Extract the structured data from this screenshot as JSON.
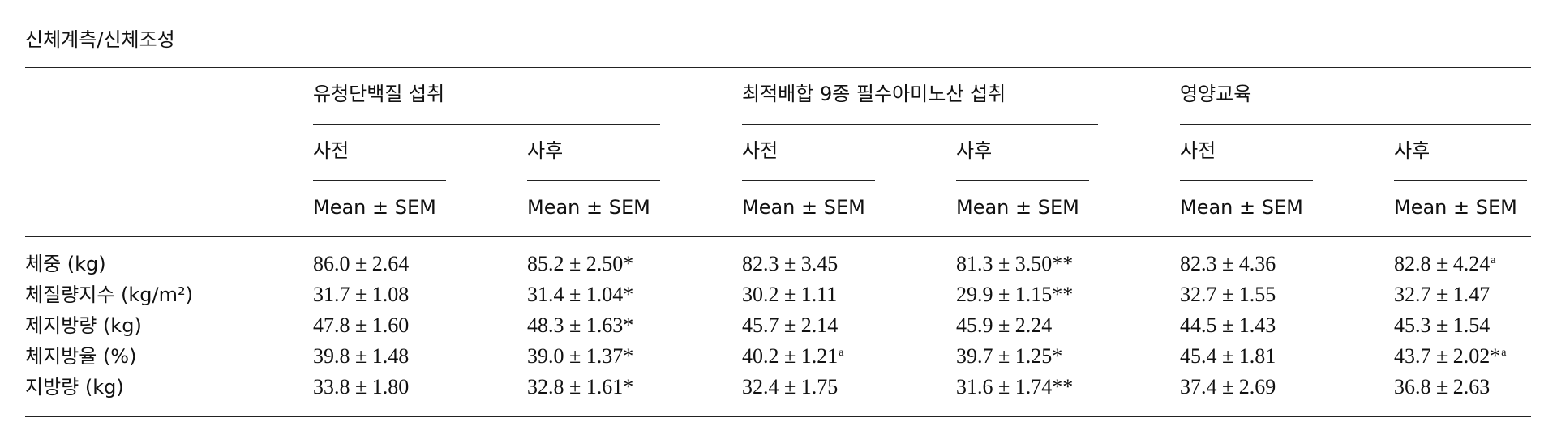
{
  "title": "신체계측/신체조성",
  "table": {
    "groups": [
      {
        "name": "유청단백질 섭취",
        "columns": [
          {
            "name": "사전",
            "stat": "Mean ± SEM"
          },
          {
            "name": "사후",
            "stat": "Mean ± SEM"
          }
        ]
      },
      {
        "name": "최적배합 9종 필수아미노산 섭취",
        "columns": [
          {
            "name": "사전",
            "stat": "Mean ± SEM"
          },
          {
            "name": "사후",
            "stat": "Mean ± SEM"
          }
        ]
      },
      {
        "name": "영양교육",
        "columns": [
          {
            "name": "사전",
            "stat": "Mean ± SEM"
          },
          {
            "name": "사후",
            "stat": "Mean ± SEM"
          }
        ]
      }
    ],
    "rows": [
      {
        "label": "체중 (kg)",
        "cells": [
          {
            "text": "86.0 ± 2.64"
          },
          {
            "text": "85.2 ± 2.50*"
          },
          {
            "text": "82.3 ± 3.45"
          },
          {
            "text": "81.3 ± 3.50**"
          },
          {
            "text": "82.3 ± 4.36"
          },
          {
            "text": "82.8 ± 4.24",
            "sup": "a"
          }
        ]
      },
      {
        "label": "체질량지수 (kg/m²)",
        "cells": [
          {
            "text": "31.7 ± 1.08"
          },
          {
            "text": "31.4 ± 1.04*"
          },
          {
            "text": "30.2 ± 1.11"
          },
          {
            "text": "29.9 ± 1.15**"
          },
          {
            "text": "32.7 ± 1.55"
          },
          {
            "text": "32.7 ± 1.47"
          }
        ]
      },
      {
        "label": "제지방량 (kg)",
        "cells": [
          {
            "text": "47.8 ± 1.60"
          },
          {
            "text": "48.3 ± 1.63*"
          },
          {
            "text": "45.7 ± 2.14"
          },
          {
            "text": "45.9 ± 2.24"
          },
          {
            "text": "44.5 ± 1.43"
          },
          {
            "text": "45.3 ± 1.54"
          }
        ]
      },
      {
        "label": "체지방율 (%)",
        "cells": [
          {
            "text": "39.8 ± 1.48"
          },
          {
            "text": "39.0 ± 1.37*"
          },
          {
            "text": "40.2 ± 1.21",
            "sup": "a"
          },
          {
            "text": "39.7 ± 1.25*"
          },
          {
            "text": "45.4 ± 1.81"
          },
          {
            "text": "43.7 ± 2.02*",
            "sup": "a"
          }
        ]
      },
      {
        "label": "지방량 (kg)",
        "cells": [
          {
            "text": "33.8 ± 1.80"
          },
          {
            "text": "32.8 ± 1.61*"
          },
          {
            "text": "32.4 ± 1.75"
          },
          {
            "text": "31.6 ± 1.74**"
          },
          {
            "text": "37.4 ± 2.69"
          },
          {
            "text": "36.8 ± 2.63"
          }
        ]
      }
    ]
  }
}
